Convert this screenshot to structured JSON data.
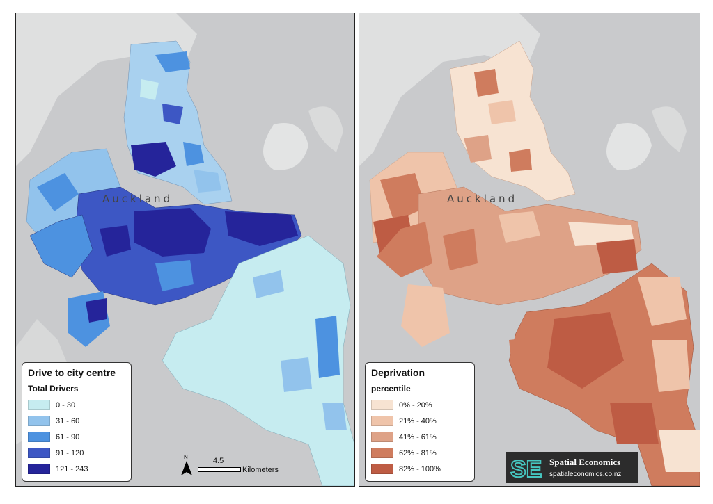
{
  "left_map": {
    "city_label": "Auckland",
    "legend": {
      "title": "Drive to city centre",
      "subtitle": "Total Drivers",
      "classes": [
        {
          "label": "0 - 30",
          "color": "#c6ecf0"
        },
        {
          "label": "31 - 60",
          "color": "#92c3ec"
        },
        {
          "label": "61 - 90",
          "color": "#4d92e0"
        },
        {
          "label": "91 - 120",
          "color": "#3d57c4"
        },
        {
          "label": "121 - 243",
          "color": "#25249a"
        }
      ]
    },
    "scale": {
      "value": "4.5",
      "unit": "Kilometers"
    },
    "north_label": "N"
  },
  "right_map": {
    "city_label": "Auckland",
    "legend": {
      "title": "Deprivation",
      "subtitle": "percentile",
      "classes": [
        {
          "label": "0% - 20%",
          "color": "#f7e3d2"
        },
        {
          "label": "21% - 40%",
          "color": "#efc4aa"
        },
        {
          "label": "41% - 61%",
          "color": "#dea287"
        },
        {
          "label": "62% - 81%",
          "color": "#cf7c5e"
        },
        {
          "label": "82% - 100%",
          "color": "#be5c44"
        }
      ]
    },
    "logo": {
      "mark": "SE",
      "name": "Spatial Economics",
      "url": "spatialeconomics.co.nz"
    }
  }
}
